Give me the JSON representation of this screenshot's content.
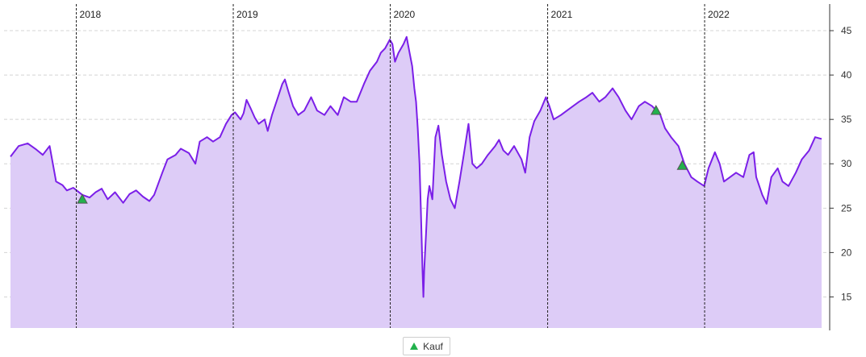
{
  "chart_data": {
    "type": "area",
    "title": "",
    "xlabel": "",
    "ylabel": "",
    "ylim": [
      11.5,
      48
    ],
    "y_ticks": [
      15,
      20,
      25,
      30,
      35,
      40,
      45
    ],
    "x_range": [
      "2017-08-01",
      "2022-09-30"
    ],
    "year_markers": [
      {
        "label": "2018",
        "date": "2018-01-01"
      },
      {
        "label": "2019",
        "date": "2019-01-01"
      },
      {
        "label": "2020",
        "date": "2020-01-01"
      },
      {
        "label": "2021",
        "date": "2021-01-01"
      },
      {
        "label": "2022",
        "date": "2022-01-01"
      }
    ],
    "grid": true,
    "legend_position": "bottom-center",
    "colors": {
      "line": "#7b1fe8",
      "fill": "#ddccf7",
      "marker": "#22b14c",
      "grid": "#d4d4d4",
      "divider": "#222222"
    },
    "series": [
      {
        "values": [
          [
            "2017-08-01",
            30.8
          ],
          [
            "2017-08-20",
            32.0
          ],
          [
            "2017-09-10",
            32.3
          ],
          [
            "2017-09-30",
            31.6
          ],
          [
            "2017-10-15",
            31.0
          ],
          [
            "2017-10-31",
            32.0
          ],
          [
            "2017-11-15",
            28.0
          ],
          [
            "2017-11-30",
            27.6
          ],
          [
            "2017-12-10",
            27.0
          ],
          [
            "2017-12-25",
            27.3
          ],
          [
            "2018-01-15",
            26.5
          ],
          [
            "2018-02-01",
            26.2
          ],
          [
            "2018-02-15",
            26.8
          ],
          [
            "2018-03-01",
            27.2
          ],
          [
            "2018-03-15",
            26.0
          ],
          [
            "2018-04-01",
            26.8
          ],
          [
            "2018-04-20",
            25.6
          ],
          [
            "2018-05-05",
            26.6
          ],
          [
            "2018-05-20",
            27.0
          ],
          [
            "2018-06-05",
            26.3
          ],
          [
            "2018-06-20",
            25.8
          ],
          [
            "2018-07-01",
            26.5
          ],
          [
            "2018-07-20",
            29.0
          ],
          [
            "2018-08-01",
            30.5
          ],
          [
            "2018-08-20",
            31.0
          ],
          [
            "2018-09-01",
            31.7
          ],
          [
            "2018-09-20",
            31.2
          ],
          [
            "2018-10-05",
            30.0
          ],
          [
            "2018-10-15",
            32.5
          ],
          [
            "2018-11-01",
            33.0
          ],
          [
            "2018-11-15",
            32.5
          ],
          [
            "2018-12-01",
            33.0
          ],
          [
            "2018-12-15",
            34.5
          ],
          [
            "2018-12-28",
            35.5
          ],
          [
            "2019-01-05",
            35.8
          ],
          [
            "2019-01-18",
            35.0
          ],
          [
            "2019-01-25",
            35.7
          ],
          [
            "2019-02-01",
            37.2
          ],
          [
            "2019-02-10",
            36.3
          ],
          [
            "2019-02-20",
            35.2
          ],
          [
            "2019-03-01",
            34.5
          ],
          [
            "2019-03-15",
            35.0
          ],
          [
            "2019-03-22",
            33.7
          ],
          [
            "2019-04-01",
            35.5
          ],
          [
            "2019-04-15",
            37.5
          ],
          [
            "2019-04-25",
            39.0
          ],
          [
            "2019-05-01",
            39.5
          ],
          [
            "2019-05-10",
            38.0
          ],
          [
            "2019-05-20",
            36.5
          ],
          [
            "2019-06-01",
            35.5
          ],
          [
            "2019-06-15",
            36.0
          ],
          [
            "2019-07-01",
            37.5
          ],
          [
            "2019-07-15",
            36.0
          ],
          [
            "2019-08-01",
            35.5
          ],
          [
            "2019-08-15",
            36.5
          ],
          [
            "2019-09-01",
            35.5
          ],
          [
            "2019-09-15",
            37.5
          ],
          [
            "2019-10-01",
            37.0
          ],
          [
            "2019-10-15",
            37.0
          ],
          [
            "2019-11-01",
            39.0
          ],
          [
            "2019-11-15",
            40.5
          ],
          [
            "2019-12-01",
            41.5
          ],
          [
            "2019-12-10",
            42.5
          ],
          [
            "2019-12-20",
            43.0
          ],
          [
            "2019-12-31",
            44.0
          ],
          [
            "2020-01-06",
            43.5
          ],
          [
            "2020-01-12",
            41.5
          ],
          [
            "2020-01-20",
            42.5
          ],
          [
            "2020-02-01",
            43.5
          ],
          [
            "2020-02-08",
            44.3
          ],
          [
            "2020-02-15",
            42.5
          ],
          [
            "2020-02-21",
            41.0
          ],
          [
            "2020-02-26",
            38.5
          ],
          [
            "2020-03-01",
            37.0
          ],
          [
            "2020-03-05",
            34.0
          ],
          [
            "2020-03-09",
            30.0
          ],
          [
            "2020-03-12",
            25.0
          ],
          [
            "2020-03-16",
            18.0
          ],
          [
            "2020-03-18",
            15.0
          ],
          [
            "2020-03-20",
            18.0
          ],
          [
            "2020-03-24",
            22.0
          ],
          [
            "2020-03-28",
            26.0
          ],
          [
            "2020-04-01",
            27.5
          ],
          [
            "2020-04-08",
            26.0
          ],
          [
            "2020-04-15",
            33.0
          ],
          [
            "2020-04-22",
            34.3
          ],
          [
            "2020-04-30",
            31.0
          ],
          [
            "2020-05-10",
            28.0
          ],
          [
            "2020-05-20",
            26.0
          ],
          [
            "2020-05-30",
            25.0
          ],
          [
            "2020-06-10",
            28.0
          ],
          [
            "2020-06-20",
            31.0
          ],
          [
            "2020-07-01",
            34.5
          ],
          [
            "2020-07-10",
            30.0
          ],
          [
            "2020-07-20",
            29.5
          ],
          [
            "2020-08-01",
            30.0
          ],
          [
            "2020-08-15",
            31.0
          ],
          [
            "2020-09-01",
            32.0
          ],
          [
            "2020-09-10",
            32.7
          ],
          [
            "2020-09-20",
            31.5
          ],
          [
            "2020-10-01",
            31.0
          ],
          [
            "2020-10-15",
            32.0
          ],
          [
            "2020-11-01",
            30.5
          ],
          [
            "2020-11-10",
            29.0
          ],
          [
            "2020-11-20",
            33.0
          ],
          [
            "2020-12-01",
            34.8
          ],
          [
            "2020-12-15",
            36.0
          ],
          [
            "2020-12-28",
            37.5
          ],
          [
            "2021-01-05",
            36.5
          ],
          [
            "2021-01-15",
            35.0
          ],
          [
            "2021-02-01",
            35.5
          ],
          [
            "2021-02-15",
            36.0
          ],
          [
            "2021-03-01",
            36.5
          ],
          [
            "2021-03-15",
            37.0
          ],
          [
            "2021-04-01",
            37.5
          ],
          [
            "2021-04-15",
            38.0
          ],
          [
            "2021-05-01",
            37.0
          ],
          [
            "2021-05-15",
            37.5
          ],
          [
            "2021-06-01",
            38.5
          ],
          [
            "2021-06-15",
            37.5
          ],
          [
            "2021-07-01",
            36.0
          ],
          [
            "2021-07-15",
            35.0
          ],
          [
            "2021-08-01",
            36.5
          ],
          [
            "2021-08-15",
            37.0
          ],
          [
            "2021-09-01",
            36.5
          ],
          [
            "2021-09-20",
            35.5
          ],
          [
            "2021-10-01",
            34.0
          ],
          [
            "2021-10-15",
            33.0
          ],
          [
            "2021-11-01",
            32.0
          ],
          [
            "2021-11-15",
            30.0
          ],
          [
            "2021-12-01",
            28.5
          ],
          [
            "2021-12-15",
            28.0
          ],
          [
            "2021-12-31",
            27.5
          ],
          [
            "2022-01-10",
            29.5
          ],
          [
            "2022-01-25",
            31.3
          ],
          [
            "2022-02-05",
            30.0
          ],
          [
            "2022-02-15",
            28.0
          ],
          [
            "2022-03-01",
            28.5
          ],
          [
            "2022-03-15",
            29.0
          ],
          [
            "2022-04-01",
            28.5
          ],
          [
            "2022-04-15",
            31.0
          ],
          [
            "2022-04-25",
            31.3
          ],
          [
            "2022-05-01",
            28.5
          ],
          [
            "2022-05-15",
            26.5
          ],
          [
            "2022-05-25",
            25.5
          ],
          [
            "2022-06-05",
            28.5
          ],
          [
            "2022-06-20",
            29.5
          ],
          [
            "2022-07-01",
            28.0
          ],
          [
            "2022-07-15",
            27.5
          ],
          [
            "2022-08-01",
            29.0
          ],
          [
            "2022-08-15",
            30.5
          ],
          [
            "2022-09-01",
            31.5
          ],
          [
            "2022-09-15",
            33.0
          ],
          [
            "2022-09-30",
            32.8
          ]
        ]
      }
    ],
    "markers": [
      {
        "label": "Kauf",
        "date": "2018-01-15",
        "value": 26.0
      },
      {
        "label": "Kauf",
        "date": "2021-09-10",
        "value": 36.0
      },
      {
        "label": "Kauf",
        "date": "2021-11-10",
        "value": 29.8
      }
    ]
  },
  "legend": {
    "label": "Kauf"
  }
}
